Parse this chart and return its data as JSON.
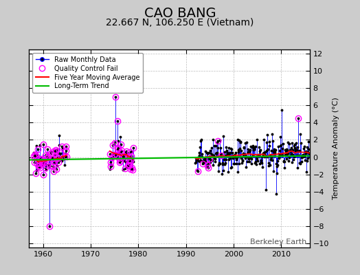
{
  "title": "CAO BANG",
  "subtitle": "22.667 N, 106.250 E (Vietnam)",
  "ylabel": "Temperature Anomaly (°C)",
  "watermark": "Berkeley Earth",
  "ylim": [
    -10.5,
    12.5
  ],
  "xlim": [
    1957,
    2016
  ],
  "xticks": [
    1960,
    1970,
    1980,
    1990,
    2000,
    2010
  ],
  "yticks": [
    -10,
    -8,
    -6,
    -4,
    -2,
    0,
    2,
    4,
    6,
    8,
    10,
    12
  ],
  "bg_color": "#cccccc",
  "plot_bg_color": "#ffffff",
  "raw_color": "#0000ff",
  "dot_color": "#000000",
  "qc_color": "#ff00ff",
  "moving_avg_color": "#ff0000",
  "trend_color": "#00bb00",
  "title_fontsize": 14,
  "subtitle_fontsize": 10,
  "label_fontsize": 8,
  "watermark_fontsize": 8
}
